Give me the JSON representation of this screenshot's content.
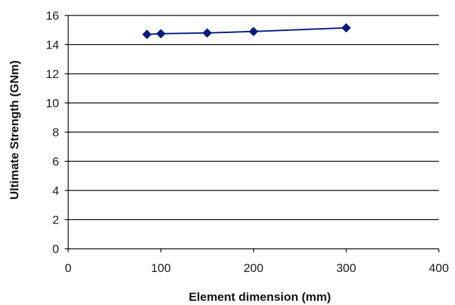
{
  "chart_data": {
    "type": "line",
    "title": "",
    "xlabel": "Element dimension (mm)",
    "ylabel": "Ultimate Strength (GNm)",
    "xlim": [
      0,
      400
    ],
    "ylim": [
      0,
      16
    ],
    "x_ticks": [
      0,
      100,
      200,
      300,
      400
    ],
    "y_ticks": [
      0,
      2,
      4,
      6,
      8,
      10,
      12,
      14,
      16
    ],
    "grid": "horizontal",
    "legend": "none",
    "series": [
      {
        "x": [
          85,
          100,
          150,
          200,
          300
        ],
        "y": [
          14.7,
          14.75,
          14.8,
          14.9,
          15.15
        ],
        "color": "#001a80",
        "marker": "diamond"
      }
    ]
  }
}
